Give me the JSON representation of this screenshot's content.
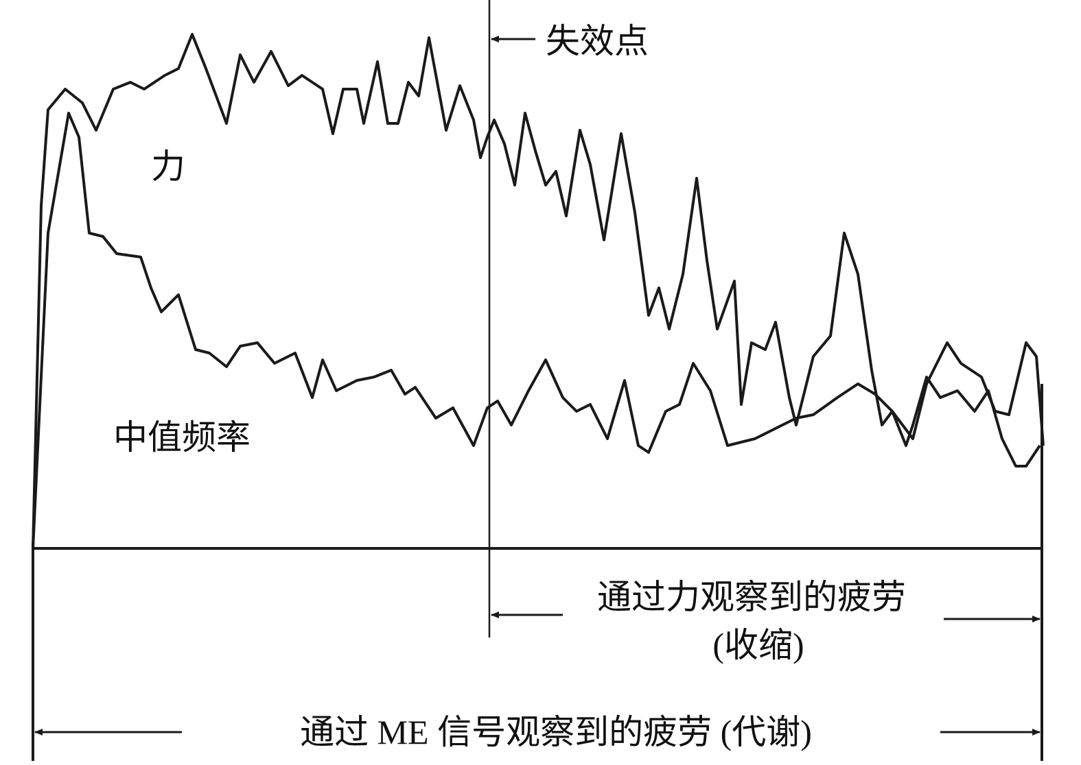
{
  "labels": {
    "failure_point": "失效点",
    "force": "力",
    "median_frequency": "中值频率",
    "fatigue_force": "通过力观察到的疲劳",
    "fatigue_force_note": "(收缩)",
    "fatigue_me": "通过 ME 信号观察到的疲劳 (代谢)"
  }
}
